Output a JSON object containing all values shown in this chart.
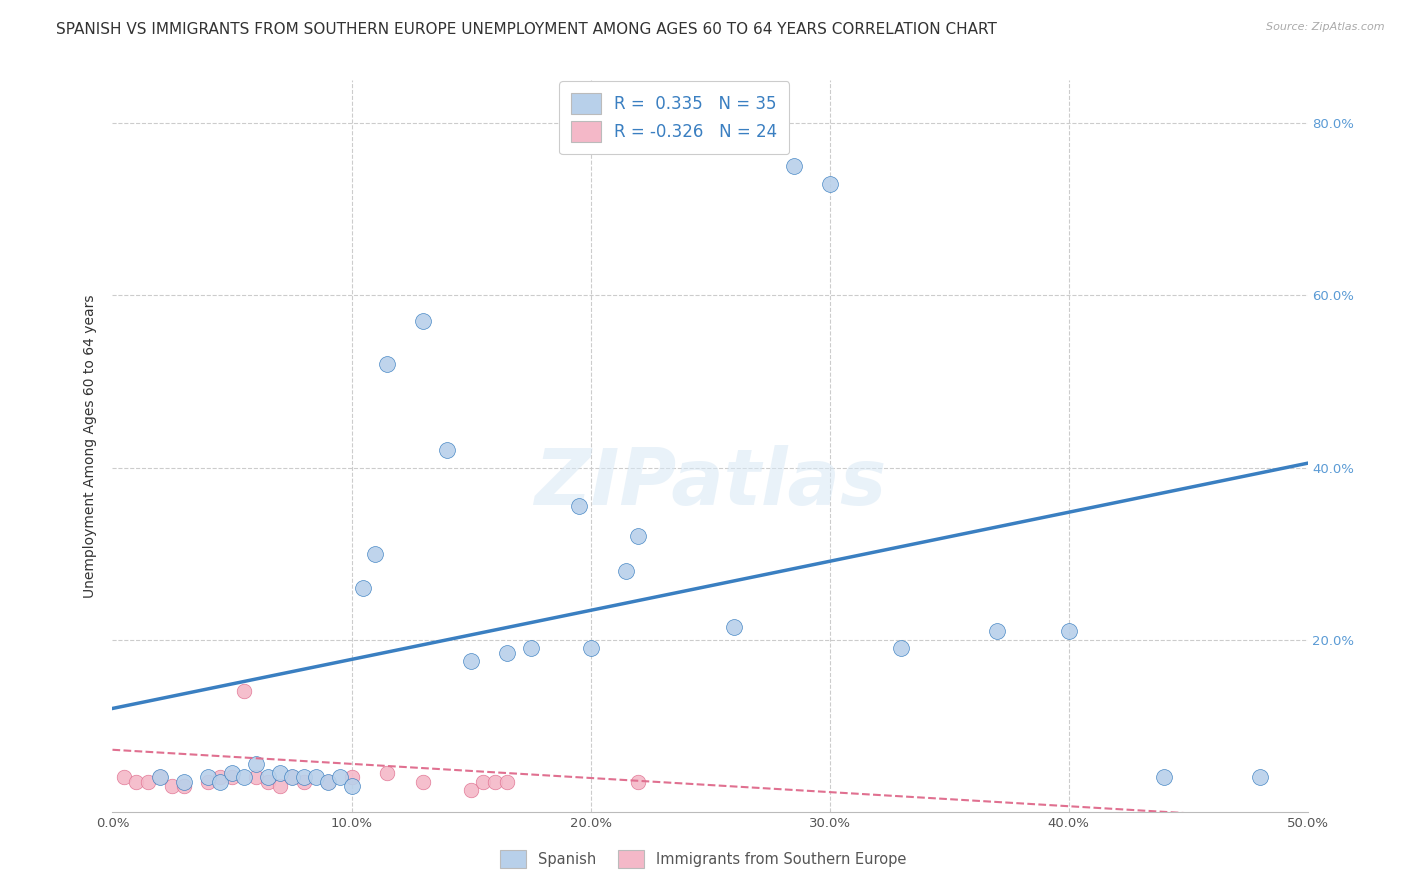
{
  "title": "SPANISH VS IMMIGRANTS FROM SOUTHERN EUROPE UNEMPLOYMENT AMONG AGES 60 TO 64 YEARS CORRELATION CHART",
  "source": "Source: ZipAtlas.com",
  "ylabel": "Unemployment Among Ages 60 to 64 years",
  "xlim": [
    0,
    0.5
  ],
  "ylim": [
    0,
    0.85
  ],
  "watermark": "ZIPatlas",
  "legend_blue_label": "R =  0.335   N = 35",
  "legend_pink_label": "R = -0.326   N = 24",
  "legend_blue_color": "#b8d0ea",
  "legend_pink_color": "#f4b8c8",
  "scatter_blue_color": "#b8d0ea",
  "scatter_pink_color": "#f4b8c8",
  "trend_blue_color": "#3a7fc1",
  "trend_pink_color": "#e07090",
  "blue_x": [
    0.02,
    0.03,
    0.04,
    0.045,
    0.05,
    0.055,
    0.06,
    0.065,
    0.07,
    0.075,
    0.08,
    0.085,
    0.09,
    0.095,
    0.1,
    0.105,
    0.11,
    0.115,
    0.13,
    0.14,
    0.15,
    0.165,
    0.175,
    0.195,
    0.2,
    0.215,
    0.22,
    0.26,
    0.285,
    0.3,
    0.33,
    0.37,
    0.4,
    0.44,
    0.48
  ],
  "blue_y": [
    0.04,
    0.035,
    0.04,
    0.035,
    0.045,
    0.04,
    0.055,
    0.04,
    0.045,
    0.04,
    0.04,
    0.04,
    0.035,
    0.04,
    0.03,
    0.26,
    0.3,
    0.52,
    0.57,
    0.42,
    0.175,
    0.185,
    0.19,
    0.355,
    0.19,
    0.28,
    0.32,
    0.215,
    0.75,
    0.73,
    0.19,
    0.21,
    0.21,
    0.04,
    0.04
  ],
  "pink_x": [
    0.005,
    0.01,
    0.015,
    0.02,
    0.025,
    0.03,
    0.04,
    0.045,
    0.05,
    0.055,
    0.06,
    0.065,
    0.07,
    0.075,
    0.08,
    0.09,
    0.1,
    0.115,
    0.13,
    0.15,
    0.155,
    0.16,
    0.165,
    0.22
  ],
  "pink_y": [
    0.04,
    0.035,
    0.035,
    0.04,
    0.03,
    0.03,
    0.035,
    0.04,
    0.04,
    0.14,
    0.04,
    0.035,
    0.03,
    0.04,
    0.035,
    0.035,
    0.04,
    0.045,
    0.035,
    0.025,
    0.035,
    0.035,
    0.035,
    0.035
  ],
  "blue_scatter_size": 130,
  "pink_scatter_size": 110,
  "blue_trend_x0": 0.0,
  "blue_trend_y0": 0.12,
  "blue_trend_x1": 0.5,
  "blue_trend_y1": 0.405,
  "pink_trend_x0": 0.0,
  "pink_trend_y0": 0.072,
  "pink_trend_x1": 0.5,
  "pink_trend_y1": -0.01,
  "background_color": "#ffffff",
  "grid_color": "#cccccc",
  "title_fontsize": 11,
  "axis_label_fontsize": 10,
  "tick_fontsize": 9.5,
  "legend_fontsize": 12
}
